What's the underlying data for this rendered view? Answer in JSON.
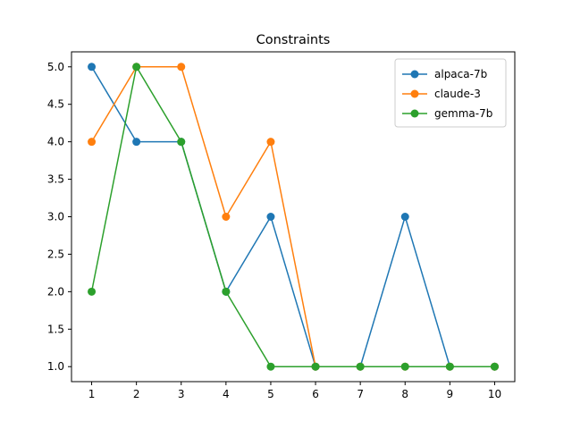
{
  "chart_data": {
    "type": "line",
    "title": "Constraints",
    "xlabel": "",
    "ylabel": "",
    "x": [
      1,
      2,
      3,
      4,
      5,
      6,
      7,
      8,
      9,
      10
    ],
    "xticks": [
      "1",
      "2",
      "3",
      "4",
      "5",
      "6",
      "7",
      "8",
      "9",
      "10"
    ],
    "yticks": [
      "1.0",
      "1.5",
      "2.0",
      "2.5",
      "3.0",
      "3.5",
      "4.0",
      "4.5",
      "5.0"
    ],
    "ytick_values": [
      1.0,
      1.5,
      2.0,
      2.5,
      3.0,
      3.5,
      4.0,
      4.5,
      5.0
    ],
    "xlim": [
      0.55,
      10.45
    ],
    "ylim": [
      0.8,
      5.2
    ],
    "grid": false,
    "legend_position": "top-right",
    "series": [
      {
        "name": "alpaca-7b",
        "color": "#1f77b4",
        "values": [
          5,
          4,
          4,
          2,
          3,
          1,
          1,
          3,
          1,
          1
        ]
      },
      {
        "name": "claude-3",
        "color": "#ff7f0e",
        "values": [
          4,
          5,
          5,
          3,
          4,
          1,
          1,
          1,
          1,
          1
        ]
      },
      {
        "name": "gemma-7b",
        "color": "#2ca02c",
        "values": [
          2,
          5,
          4,
          2,
          1,
          1,
          1,
          1,
          1,
          1
        ]
      }
    ]
  }
}
